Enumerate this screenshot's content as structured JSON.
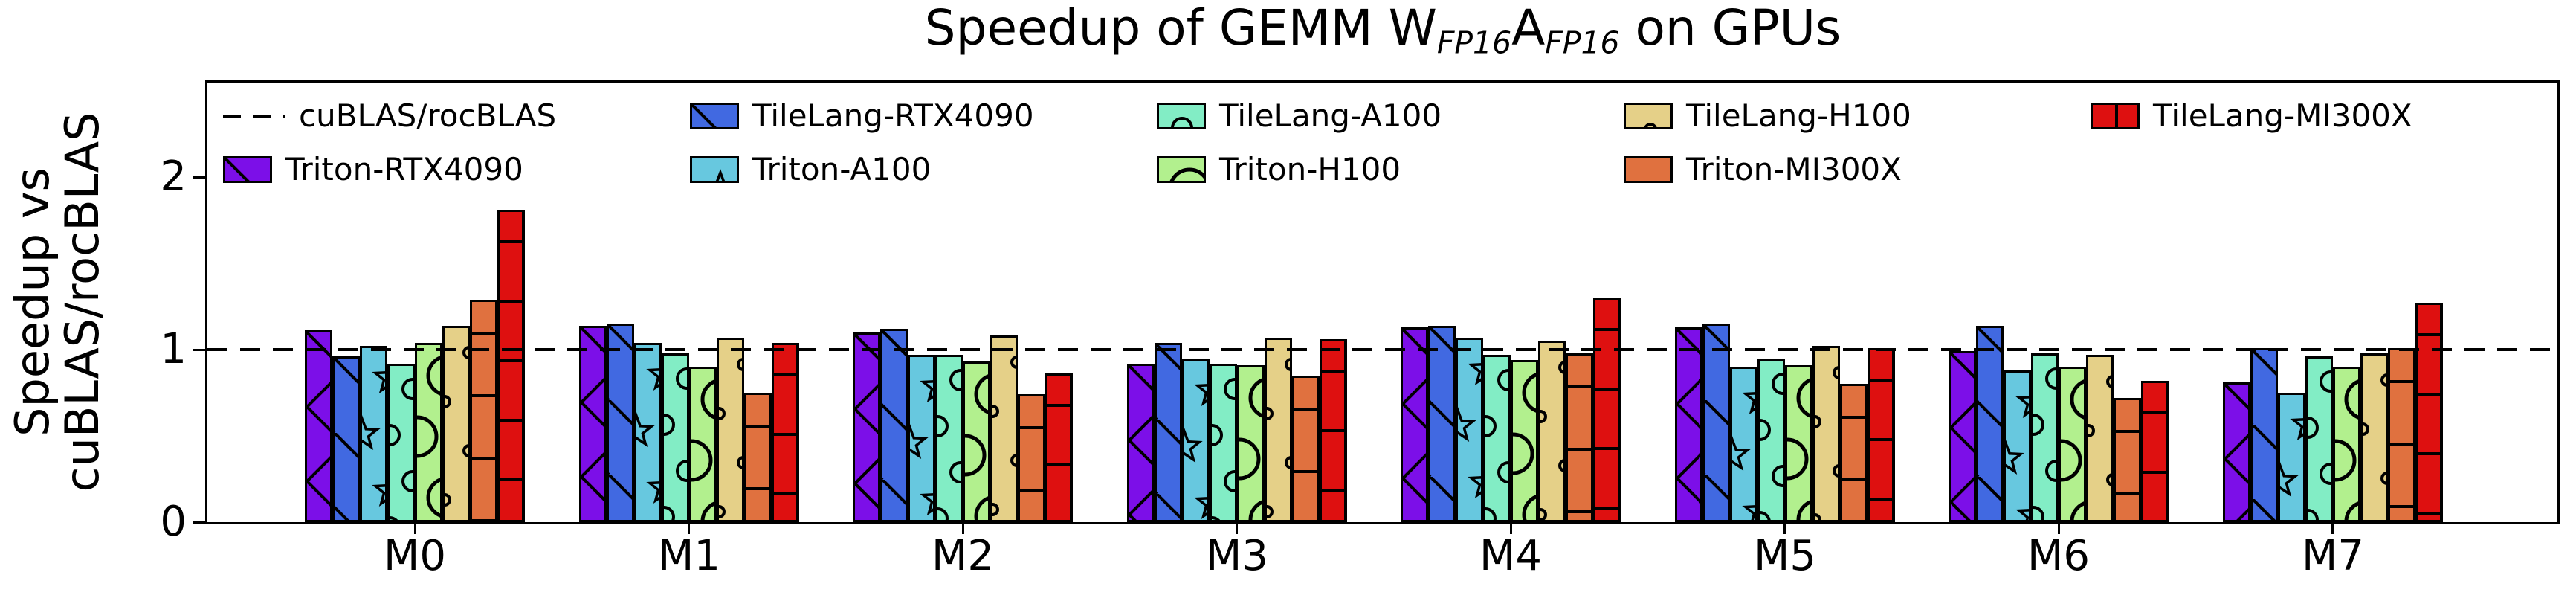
{
  "title": {
    "text": "Speedup of GEMM W_FP16 A_FP16 on GPUs",
    "prefix": "Speedup of GEMM W",
    "sub1": "FP16",
    "mid": "A",
    "sub2": "FP16",
    "suffix": " on GPUs"
  },
  "y_axis": {
    "label_line1": "Speedup vs",
    "label_line2": "cuBLAS/rocBLAS",
    "ticks": [
      {
        "label": "0",
        "value": 0
      },
      {
        "label": "1",
        "value": 1
      },
      {
        "label": "2",
        "value": 2
      }
    ]
  },
  "legend": {
    "entries": [
      {
        "label": "cuBLAS/rocBLAS",
        "type": "dash-line",
        "series": null
      },
      {
        "label": "Triton-RTX4090",
        "type": "patch",
        "series": "Triton-RTX4090"
      },
      {
        "label": "TileLang-RTX4090",
        "type": "patch",
        "series": "TileLang-RTX4090"
      },
      {
        "label": "Triton-A100",
        "type": "patch",
        "series": "Triton-A100"
      },
      {
        "label": "TileLang-A100",
        "type": "patch",
        "series": "TileLang-A100"
      },
      {
        "label": "Triton-H100",
        "type": "patch",
        "series": "Triton-H100"
      },
      {
        "label": "TileLang-H100",
        "type": "patch",
        "series": "TileLang-H100"
      },
      {
        "label": "Triton-MI300X",
        "type": "patch",
        "series": "Triton-MI300X"
      },
      {
        "label": "TileLang-MI300X",
        "type": "patch",
        "series": "TileLang-MI300X"
      }
    ]
  },
  "chart_data": {
    "type": "bar",
    "title": "Speedup of GEMM W_FP16 A_FP16 on GPUs",
    "xlabel": "",
    "ylabel": "Speedup vs cuBLAS/rocBLAS",
    "ylim": [
      0,
      2.55
    ],
    "grid": false,
    "legend_position": "upper area inside axes, 5 columns, 2 rows",
    "reference_line": {
      "label": "cuBLAS/rocBLAS",
      "value": 1.0,
      "style": "dashed-black"
    },
    "categories": [
      "M0",
      "M1",
      "M2",
      "M3",
      "M4",
      "M5",
      "M6",
      "M7"
    ],
    "series": [
      {
        "name": "Triton-RTX4090",
        "color": "#7C0FE8",
        "hatch": "x",
        "values": [
          1.11,
          1.14,
          1.1,
          0.92,
          1.13,
          1.13,
          0.99,
          0.81
        ]
      },
      {
        "name": "TileLang-RTX4090",
        "color": "#4169E1",
        "hatch": "backslash",
        "values": [
          0.96,
          1.15,
          1.12,
          1.04,
          1.14,
          1.15,
          1.14,
          1.01
        ]
      },
      {
        "name": "Triton-A100",
        "color": "#67C8DF",
        "hatch": "star",
        "values": [
          1.02,
          1.04,
          0.97,
          0.95,
          1.07,
          0.9,
          0.88,
          0.75
        ]
      },
      {
        "name": "TileLang-A100",
        "color": "#82EDC5",
        "hatch": "circle-small",
        "values": [
          0.92,
          0.98,
          0.97,
          0.92,
          0.97,
          0.95,
          0.98,
          0.96
        ]
      },
      {
        "name": "Triton-H100",
        "color": "#B2F08E",
        "hatch": "circle-large",
        "values": [
          1.04,
          0.9,
          0.93,
          0.91,
          0.94,
          0.91,
          0.9,
          0.9
        ]
      },
      {
        "name": "TileLang-H100",
        "color": "#E5D088",
        "hatch": "dot",
        "values": [
          1.14,
          1.07,
          1.08,
          1.07,
          1.05,
          1.02,
          0.97,
          0.98
        ]
      },
      {
        "name": "Triton-MI300X",
        "color": "#E0713F",
        "hatch": "horizontal",
        "values": [
          1.29,
          0.75,
          0.74,
          0.85,
          0.98,
          0.8,
          0.72,
          1.01
        ]
      },
      {
        "name": "TileLang-MI300X",
        "color": "#DE1010",
        "hatch": "plus",
        "values": [
          1.81,
          1.04,
          0.86,
          1.06,
          1.3,
          1.01,
          0.82,
          1.27
        ]
      }
    ]
  }
}
